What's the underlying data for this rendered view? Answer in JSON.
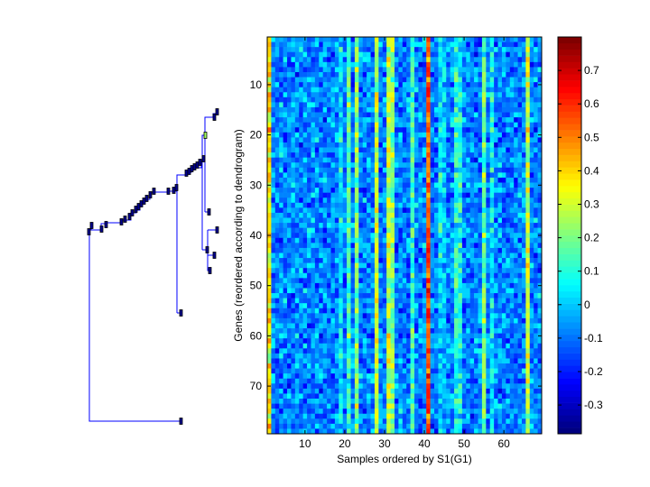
{
  "chart_data": {
    "type": "heatmap",
    "xlabel": "Samples ordered by S1(G1)",
    "ylabel": "Genes (reordered according to dendrogram)",
    "n_samples": 69,
    "n_genes": 79,
    "x_ticks": [
      10,
      20,
      30,
      40,
      50,
      60
    ],
    "y_ticks": [
      10,
      20,
      30,
      40,
      50,
      60,
      70
    ],
    "xlim": [
      0.5,
      69.5
    ],
    "ylim": [
      0.5,
      79.5
    ],
    "colormap": "jet",
    "clim": [
      -0.386,
      0.8
    ],
    "colorbar_ticks": [
      0.7,
      0.6,
      0.5,
      0.4,
      0.3,
      0.2,
      0.1,
      0,
      -0.1,
      -0.2,
      -0.3
    ],
    "colorbar_tick_labels": [
      "0.7",
      "0.6",
      "0.5",
      "0.4",
      "0.3",
      "0.2",
      "0.1",
      "0",
      "-0.1",
      "-0.2",
      "-0.3"
    ],
    "baseline_value": -0.08,
    "sample_mean_values": {
      "1": 0.38,
      "19": 0.05,
      "21": 0.15,
      "23": 0.2,
      "28": 0.3,
      "31": 0.27,
      "32": 0.22,
      "37": 0.12,
      "41": 0.55,
      "44": 0.03,
      "45": 0.0,
      "48": 0.1,
      "49": 0.08,
      "55": 0.2,
      "57": 0.05,
      "66": 0.3
    },
    "cell_variation": 0.11,
    "dendrogram": "hierarchical clustering of genes shown on the left, leaves drawn as small markers"
  }
}
